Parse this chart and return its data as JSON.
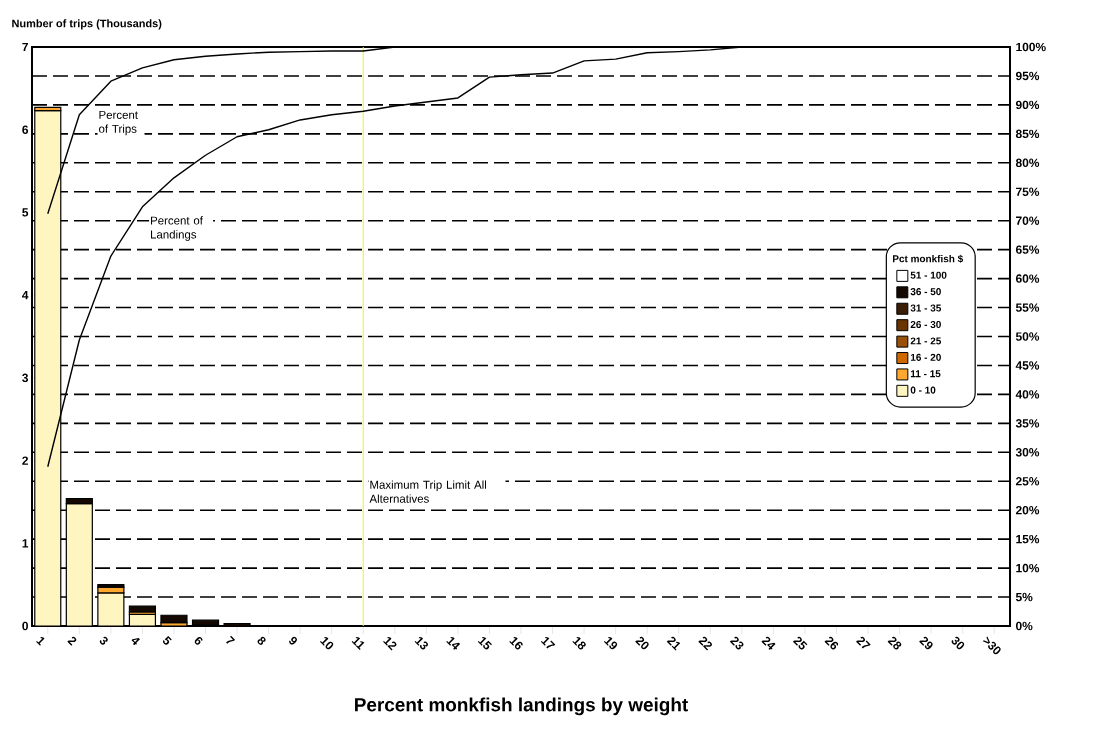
{
  "chart_data": {
    "type": "bar",
    "stacked": true,
    "xlabel": "Percent monkfish landings by weight",
    "ylabel": "Number of trips (Thousands)",
    "legend_title": "Pct monkfish $",
    "legend": "right",
    "grid": "y",
    "marker": "none",
    "categories": [
      "1",
      "2",
      "3",
      "4",
      "5",
      "6",
      "7",
      "8",
      "9",
      "10",
      "11",
      "12",
      "13",
      "14",
      "15",
      "16",
      "17",
      "18",
      "19",
      "20",
      "21",
      "22",
      "23",
      "24",
      "25",
      "26",
      "27",
      "28",
      "29",
      "30",
      ">30"
    ],
    "ylim": [
      0,
      7
    ],
    "yticks": [
      0,
      1,
      2,
      3,
      4,
      5,
      6,
      7
    ],
    "y2lim": [
      0,
      100
    ],
    "y2ticks": [
      {
        "value": 0,
        "label": "0%"
      },
      {
        "value": 5,
        "label": "5%"
      },
      {
        "value": 10,
        "label": "10%"
      },
      {
        "value": 15,
        "label": "15%"
      },
      {
        "value": 20,
        "label": "20%"
      },
      {
        "value": 25,
        "label": "25%"
      },
      {
        "value": 30,
        "label": "30%"
      },
      {
        "value": 35,
        "label": "35%"
      },
      {
        "value": 40,
        "label": "40%"
      },
      {
        "value": 45,
        "label": "45%"
      },
      {
        "value": 50,
        "label": "50%"
      },
      {
        "value": 55,
        "label": "55%"
      },
      {
        "value": 60,
        "label": "60%"
      },
      {
        "value": 65,
        "label": "65%"
      },
      {
        "value": 70,
        "label": "70%"
      },
      {
        "value": 75,
        "label": "75%"
      },
      {
        "value": 80,
        "label": "80%"
      },
      {
        "value": 85,
        "label": "85%"
      },
      {
        "value": 90,
        "label": "90%"
      },
      {
        "value": 95,
        "label": "95%"
      },
      {
        "value": 100,
        "label": "100%"
      }
    ],
    "ref_lines": [
      {
        "axis": "x",
        "value": "11",
        "label": "Maximum Trip Limit All Alternatives",
        "color": "#f5f500"
      }
    ],
    "series": [
      {
        "name": "0 - 10",
        "color": "#fff5c0",
        "values": [
          6.23,
          1.48,
          0.4,
          0.14,
          null,
          0.01,
          0,
          0,
          0,
          0,
          0,
          0,
          0,
          0,
          0,
          0,
          0,
          0,
          0,
          0,
          0,
          0,
          0,
          0,
          0,
          0,
          0,
          0,
          0,
          0,
          0
        ]
      },
      {
        "name": "11 - 15",
        "color": "#ffa830",
        "values": [
          0.04,
          0,
          0.07,
          0.03,
          0.04,
          0,
          0,
          0,
          0,
          0,
          0,
          0,
          0,
          0,
          0,
          0,
          0,
          0,
          0,
          0,
          0,
          0,
          0,
          0,
          0,
          0,
          0,
          0,
          0,
          0,
          0
        ]
      },
      {
        "name": "16 - 20",
        "color": "#d06800",
        "values": [
          0,
          0,
          0,
          0,
          0,
          0,
          0,
          0,
          0,
          0,
          0,
          0,
          0,
          0,
          0,
          0,
          0,
          0,
          0,
          0,
          0,
          0,
          0,
          0,
          0,
          0,
          0,
          0,
          0,
          0,
          0
        ]
      },
      {
        "name": "21 - 25",
        "color": "#9a5008",
        "values": [
          0,
          0,
          0,
          0,
          0,
          0,
          0,
          0,
          0,
          0,
          0,
          0,
          0,
          0,
          0,
          0,
          0,
          0,
          0,
          0,
          0,
          0,
          0,
          0,
          0,
          0,
          0,
          0,
          0,
          0,
          0
        ]
      },
      {
        "name": "26 - 30",
        "color": "#6a3400",
        "values": [
          0,
          0,
          0,
          0,
          0,
          0,
          0,
          0,
          0,
          0,
          0,
          0,
          0,
          0,
          0,
          0,
          0,
          0,
          0,
          0,
          0,
          0,
          0,
          0,
          0,
          0,
          0,
          0,
          0,
          0,
          0
        ]
      },
      {
        "name": "31 - 35",
        "color": "#3a1e05",
        "values": [
          0,
          0,
          0,
          0,
          0,
          0,
          0,
          0,
          0,
          0,
          0,
          0,
          0,
          0,
          0,
          0,
          0,
          0,
          0,
          0,
          0,
          0,
          0,
          0,
          0,
          0,
          0,
          0,
          0,
          0,
          0
        ]
      },
      {
        "name": "36 - 50",
        "color": "#140800",
        "values": [
          0,
          0.06,
          0.03,
          0.07,
          0.09,
          0.06,
          0.03,
          0,
          0,
          0,
          0,
          0,
          0,
          0,
          0,
          0,
          0,
          0,
          0,
          0,
          0,
          0,
          0,
          0,
          0,
          0,
          0,
          0,
          0,
          0,
          0
        ]
      },
      {
        "name": "51 - 100",
        "color": "#ffffff",
        "values": [
          0,
          0,
          0,
          0,
          0,
          0,
          0,
          0,
          0,
          0,
          0,
          0,
          0,
          0,
          0,
          0,
          0,
          0,
          0,
          0,
          0,
          0,
          0,
          0,
          0,
          0,
          0,
          0,
          0,
          0,
          0
        ]
      },
      {
        "name": "Percent of Trips",
        "type": "line",
        "axis": "y2",
        "color": "#000000",
        "values": [
          71.2,
          88.3,
          94.1,
          96.4,
          97.8,
          98.4,
          98.8,
          99.1,
          99.2,
          99.3,
          99.3,
          100,
          100,
          100,
          100,
          100,
          100,
          100,
          100,
          100,
          100,
          100,
          100,
          100,
          100,
          100,
          100,
          100,
          100,
          100,
          100
        ]
      },
      {
        "name": "Percent of Landings",
        "type": "line",
        "axis": "y2",
        "color": "#000000",
        "values": [
          27.5,
          49.4,
          63.9,
          72.4,
          77.4,
          81.3,
          84.5,
          85.7,
          87.4,
          88.3,
          88.9,
          89.8,
          90.5,
          91.2,
          94.8,
          95.2,
          95.5,
          97.6,
          97.9,
          99.0,
          99.2,
          99.5,
          100,
          100,
          100,
          100,
          100,
          100,
          100,
          100,
          100
        ]
      }
    ]
  }
}
